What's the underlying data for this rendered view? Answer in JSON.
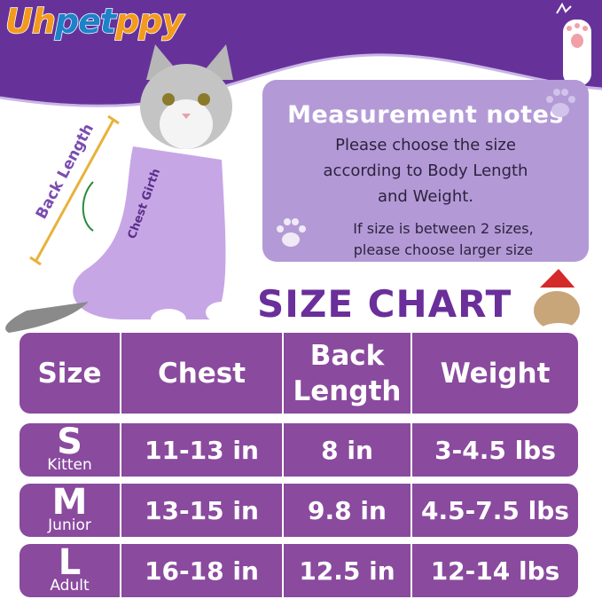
{
  "brand": {
    "logo_text": "Uhpetppy"
  },
  "notes": {
    "title": "Measurement notes",
    "line1": "Please choose the size",
    "line2": "according to Body Length",
    "line3": "and Weight.",
    "line4": "If size is between 2 sizes,",
    "line5": "please choose larger size"
  },
  "diagram": {
    "back_length": "Back Length",
    "chest_girth": "Chest Girth"
  },
  "size_chart": {
    "title": "SIZE CHART",
    "headers": [
      "Size",
      "Chest",
      "Back Length",
      "Weight"
    ],
    "rows": [
      {
        "size": "S",
        "label": "Kitten",
        "chest": "11-13 in",
        "back": "8 in",
        "weight": "3-4.5 lbs"
      },
      {
        "size": "M",
        "label": "Junior",
        "chest": "13-15 in",
        "back": "9.8 in",
        "weight": "4.5-7.5 lbs"
      },
      {
        "size": "L",
        "label": "Adult",
        "chest": "16-18 in",
        "back": "12.5 in",
        "weight": "12-14 lbs"
      }
    ]
  },
  "colors": {
    "banner": "#66329a",
    "table": "#8a4a9e",
    "notes_box": "#b39ad6",
    "title": "#6a2f9a",
    "logo_orange": "#f39a1d",
    "logo_blue": "#1d82c9"
  }
}
